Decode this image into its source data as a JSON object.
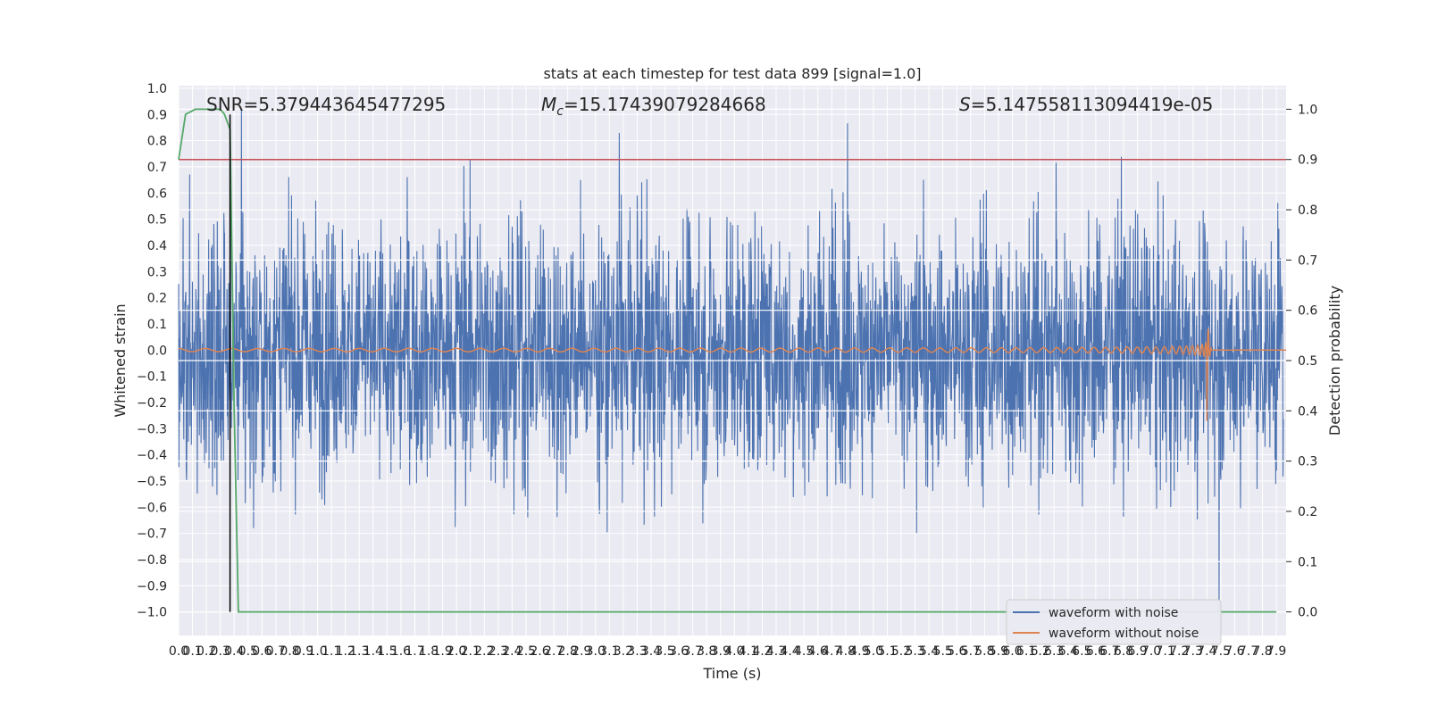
{
  "chart_data": {
    "type": "line",
    "title": "stats at each timestep for test data 899 [signal=1.0]",
    "xlabel": "Time (s)",
    "ylabel_left": "Whitened strain",
    "ylabel_right": "Detection probability",
    "xlim": [
      0.0,
      7.97
    ],
    "ylim_left": [
      -1.09,
      1.01
    ],
    "ylim_right": [
      0.0,
      1.0
    ],
    "xticks": [
      "0.0",
      "0.1",
      "0.2",
      "0.3",
      "0.4",
      "0.5",
      "0.6",
      "0.7",
      "0.8",
      "0.9",
      "1.0",
      "1.1",
      "1.2",
      "1.3",
      "1.4",
      "1.5",
      "1.6",
      "1.7",
      "1.8",
      "1.9",
      "2.0",
      "2.1",
      "2.2",
      "2.3",
      "2.4",
      "2.5",
      "2.6",
      "2.7",
      "2.8",
      "2.9",
      "3.0",
      "3.1",
      "3.2",
      "3.3",
      "3.4",
      "3.5",
      "3.6",
      "3.7",
      "3.8",
      "3.9",
      "4.0",
      "4.1",
      "4.2",
      "4.3",
      "4.4",
      "4.5",
      "4.6",
      "4.7",
      "4.8",
      "4.9",
      "5.0",
      "5.1",
      "5.2",
      "5.3",
      "5.4",
      "5.5",
      "5.6",
      "5.7",
      "5.8",
      "5.9",
      "6.0",
      "6.1",
      "6.2",
      "6.3",
      "6.4",
      "6.5",
      "6.6",
      "6.7",
      "6.8",
      "6.9",
      "7.0",
      "7.1",
      "7.2",
      "7.3",
      "7.4",
      "7.5",
      "7.6",
      "7.7",
      "7.8",
      "7.9"
    ],
    "yticks_left": [
      "1.0",
      "0.9",
      "0.8",
      "0.7",
      "0.6",
      "0.5",
      "0.4",
      "0.3",
      "0.2",
      "0.1",
      "0.0",
      "−0.1",
      "−0.2",
      "−0.3",
      "−0.4",
      "−0.5",
      "−0.6",
      "−0.7",
      "−0.8",
      "−0.9",
      "−1.0"
    ],
    "yticks_right": [
      "1.0",
      "0.9",
      "0.8",
      "0.7",
      "0.6",
      "0.5",
      "0.4",
      "0.3",
      "0.2",
      "0.1",
      "0.0"
    ],
    "annotations": {
      "snr": "SNR=5.379443645477295",
      "mc": "=15.17439079284668",
      "mc_symbol": "M",
      "mc_sub": "c",
      "s": "=5.147558113094419e-05",
      "s_symbol": "S"
    },
    "threshold": {
      "value": 0.9,
      "axis": "right",
      "color": "#c44e52"
    },
    "marker_line": {
      "x": 0.37,
      "y_top": 0.9,
      "y_bottom": -1.0,
      "color": "#000000"
    },
    "series": [
      {
        "name": "waveform with noise",
        "color": "#4c72b0",
        "axis": "left",
        "amplitude_range": [
          -1.0,
          0.92
        ]
      },
      {
        "name": "waveform without noise",
        "color": "#dd8452",
        "axis": "left",
        "merger_time": 7.4,
        "peak": 0.24,
        "trough": -0.27
      },
      {
        "name": "detection probability",
        "color": "#55a868",
        "axis": "right",
        "x": [
          0.0,
          0.05,
          0.12,
          0.2,
          0.3,
          0.33,
          0.37,
          0.4,
          0.43,
          0.5,
          1.0,
          1.1,
          7.9
        ],
        "y": [
          0.9,
          0.99,
          1.0,
          1.0,
          1.0,
          0.99,
          0.96,
          0.4,
          0.0,
          0.0,
          0.0,
          0.0,
          0.0
        ]
      }
    ],
    "legend": {
      "placement": "lower-right",
      "items": [
        "waveform with noise",
        "waveform without noise"
      ]
    },
    "grid": true
  }
}
